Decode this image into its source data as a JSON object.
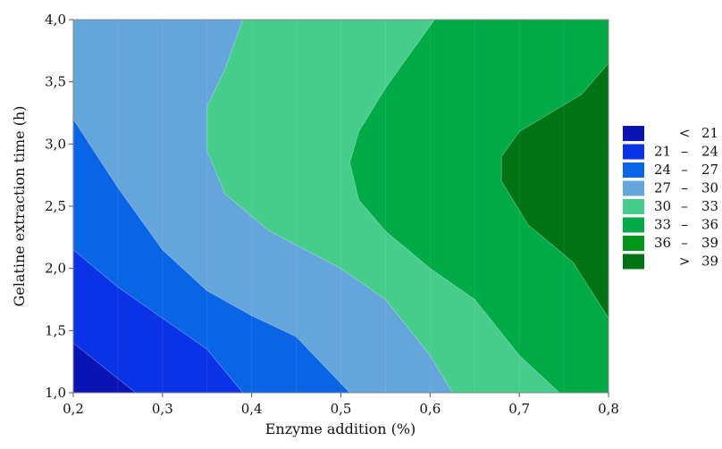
{
  "chart_data": {
    "type": "contour",
    "xlabel": "Enzyme addition (%)",
    "ylabel": "Gelatine extraction time (h)",
    "xlim": [
      0.2,
      0.8
    ],
    "ylim": [
      1.0,
      4.0
    ],
    "x_ticks": [
      "0,2",
      "0,3",
      "0,4",
      "0,5",
      "0,6",
      "0,7",
      "0,8"
    ],
    "y_ticks": [
      "1,0",
      "1,5",
      "2,0",
      "2,5",
      "3,0",
      "3,5",
      "4,0"
    ],
    "legend_position": "right",
    "levels": [
      {
        "lo": "<",
        "hi": "21",
        "color": "#0a14b4"
      },
      {
        "lo": "21",
        "hi": "24",
        "color": "#0a32e6"
      },
      {
        "lo": "24",
        "hi": "27",
        "color": "#0a64e6"
      },
      {
        "lo": "27",
        "hi": "30",
        "color": "#64a5dc"
      },
      {
        "lo": "30",
        "hi": "33",
        "color": "#46cd8c"
      },
      {
        "lo": "33",
        "hi": "36",
        "color": "#00aa46"
      },
      {
        "lo": "36",
        "hi": "39",
        "color": "#00961e"
      },
      {
        "lo": ">",
        "hi": "39",
        "color": "#007314"
      }
    ],
    "contour_boundaries": [
      {
        "level": "21",
        "points": [
          [
            0.2,
            1.4
          ],
          [
            0.27,
            1.0
          ]
        ]
      },
      {
        "level": "24",
        "points": [
          [
            0.2,
            2.15
          ],
          [
            0.25,
            1.85
          ],
          [
            0.3,
            1.6
          ],
          [
            0.35,
            1.35
          ],
          [
            0.39,
            1.0
          ]
        ]
      },
      {
        "level": "27",
        "points": [
          [
            0.2,
            3.2
          ],
          [
            0.25,
            2.65
          ],
          [
            0.3,
            2.15
          ],
          [
            0.35,
            1.82
          ],
          [
            0.4,
            1.62
          ],
          [
            0.45,
            1.45
          ],
          [
            0.51,
            1.0
          ]
        ]
      },
      {
        "level": "30",
        "points": [
          [
            0.39,
            4.0
          ],
          [
            0.37,
            3.6
          ],
          [
            0.35,
            3.3
          ],
          [
            0.35,
            2.95
          ],
          [
            0.37,
            2.6
          ],
          [
            0.42,
            2.3
          ],
          [
            0.5,
            2.0
          ],
          [
            0.55,
            1.75
          ],
          [
            0.6,
            1.3
          ],
          [
            0.625,
            1.0
          ]
        ]
      },
      {
        "level": "33",
        "points": [
          [
            0.605,
            4.0
          ],
          [
            0.58,
            3.75
          ],
          [
            0.55,
            3.45
          ],
          [
            0.52,
            3.1
          ],
          [
            0.51,
            2.85
          ],
          [
            0.52,
            2.55
          ],
          [
            0.55,
            2.3
          ],
          [
            0.6,
            2.0
          ],
          [
            0.65,
            1.75
          ],
          [
            0.7,
            1.3
          ],
          [
            0.745,
            1.0
          ]
        ]
      },
      {
        "level": "36",
        "points": [
          [
            0.8,
            3.65
          ],
          [
            0.77,
            3.4
          ],
          [
            0.7,
            3.1
          ],
          [
            0.68,
            2.9
          ],
          [
            0.68,
            2.7
          ],
          [
            0.71,
            2.35
          ],
          [
            0.76,
            2.05
          ],
          [
            0.8,
            1.6
          ]
        ]
      }
    ]
  }
}
